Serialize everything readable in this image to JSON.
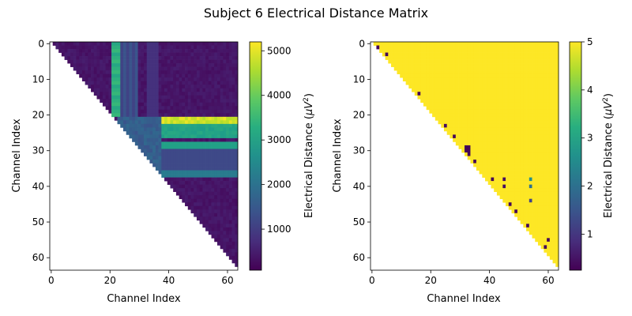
{
  "figure": {
    "title": "Subject 6 Electrical Distance Matrix"
  },
  "chart_data": [
    {
      "type": "heatmap",
      "xlabel": "Channel Index",
      "ylabel": "Channel Index",
      "x_ticks": [
        0,
        20,
        40,
        60
      ],
      "y_ticks": [
        0,
        10,
        20,
        30,
        40,
        50,
        60
      ],
      "n_channels": 64,
      "masked": "lower-triangle-and-diagonal",
      "colorbar": {
        "label_pre": "Electrical Distance (",
        "label_mu": "μ",
        "label_v": "V",
        "label_exp": "2",
        "label_post": ")",
        "range": [
          80,
          5200
        ],
        "ticks": [
          1000,
          2000,
          3000,
          4000,
          5000
        ],
        "colormap": "viridis"
      },
      "description_values": {
        "base": 250,
        "cross_channels_21_to_23_rows_0_to_20": 3100,
        "row_band_21_to_22_cols_38_to_63": 4600,
        "row_band_23_to_26_cols_38_to_63": 2900,
        "row_band_28_to_29_cols_38_to_63": 3000,
        "row_band_36_to_37_cols_38_to_63": 2200
      }
    },
    {
      "type": "heatmap",
      "xlabel": "Channel Index",
      "ylabel": "Channel Index",
      "x_ticks": [
        0,
        20,
        40,
        60
      ],
      "y_ticks": [
        0,
        10,
        20,
        30,
        40,
        50,
        60
      ],
      "n_channels": 64,
      "masked": "lower-triangle-and-diagonal",
      "colorbar": {
        "label_pre": "Electrical Distance (",
        "label_mu": "μ",
        "label_v": "V",
        "label_exp": "2",
        "label_post": ")",
        "range": [
          0.25,
          5
        ],
        "ticks": [
          1,
          2,
          3,
          4,
          5
        ],
        "colormap": "viridis"
      },
      "default_value": 5,
      "low_cells": [
        [
          1,
          2,
          0.3
        ],
        [
          3,
          5,
          0.3
        ],
        [
          14,
          16,
          0.3
        ],
        [
          23,
          25,
          0.4
        ],
        [
          26,
          28,
          0.3
        ],
        [
          29,
          32,
          0.3
        ],
        [
          29,
          33,
          0.3
        ],
        [
          30,
          32,
          0.3
        ],
        [
          30,
          33,
          0.3
        ],
        [
          31,
          33,
          0.3
        ],
        [
          33,
          35,
          0.3
        ],
        [
          38,
          41,
          0.3
        ],
        [
          38,
          45,
          0.4
        ],
        [
          40,
          45,
          0.4
        ],
        [
          38,
          54,
          2.6
        ],
        [
          40,
          54,
          2.0
        ],
        [
          44,
          54,
          1.2
        ],
        [
          45,
          47,
          0.3
        ],
        [
          47,
          49,
          0.3
        ],
        [
          51,
          53,
          0.3
        ],
        [
          55,
          60,
          0.3
        ],
        [
          57,
          59,
          0.3
        ]
      ]
    }
  ]
}
